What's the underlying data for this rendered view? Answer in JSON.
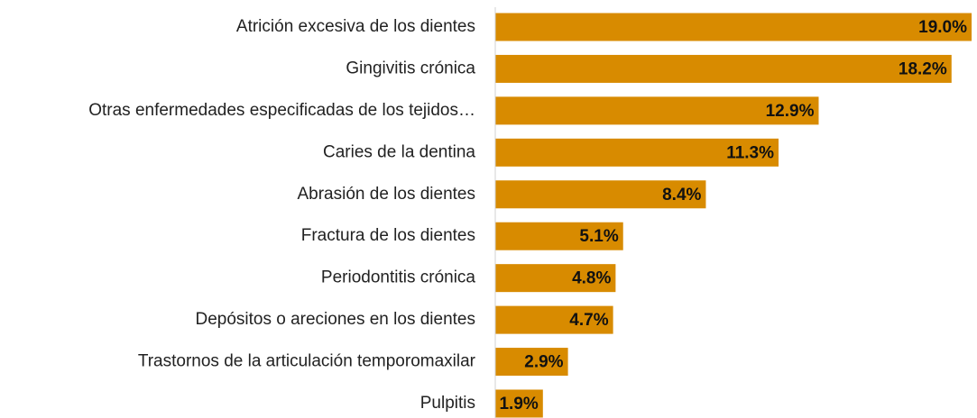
{
  "chart_data": {
    "type": "bar",
    "orientation": "horizontal",
    "categories": [
      "Atrición excesiva de los dientes",
      "Gingivitis crónica",
      "Otras enfermedades especificadas de los tejidos…",
      "Caries de la dentina",
      "Abrasión de los dientes",
      "Fractura de los dientes",
      "Periodontitis crónica",
      "Depósitos o areciones en los dientes",
      "Trastornos de la articulación temporomaxilar",
      "Pulpitis"
    ],
    "values": [
      19.0,
      18.2,
      12.9,
      11.3,
      8.4,
      5.1,
      4.8,
      4.7,
      2.9,
      1.9
    ],
    "value_labels": [
      "19.0%",
      "18.2%",
      "12.9%",
      "11.3%",
      "8.4%",
      "5.1%",
      "4.8%",
      "4.7%",
      "2.9%",
      "1.9%"
    ],
    "color": "#d88b00",
    "xlim": [
      0,
      19
    ]
  }
}
